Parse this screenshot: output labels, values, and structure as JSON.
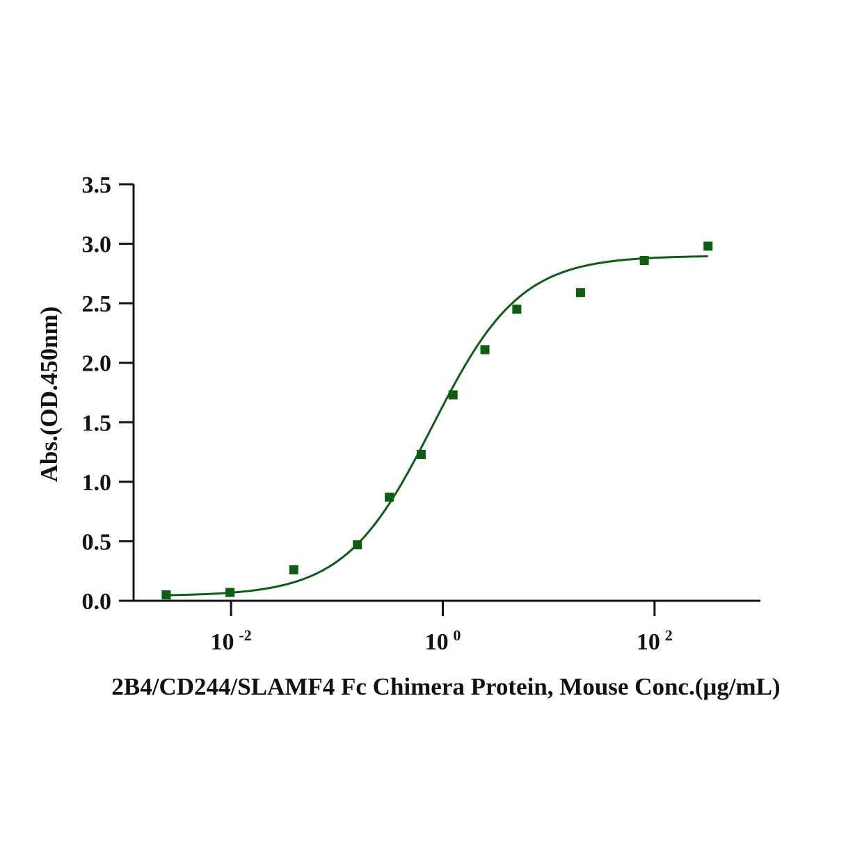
{
  "chart_data": {
    "type": "scatter",
    "title": "",
    "xlabel": "2B4/CD244/SLAMF4 Fc Chimera Protein, Mouse Conc.(μg/mL)",
    "ylabel": "Abs.(OD.450nm)",
    "x_scale": "log10",
    "xlim": [
      0.0012,
      1000
    ],
    "ylim": [
      0,
      3.5
    ],
    "grid": false,
    "legend": "none",
    "color": "#0b5e12",
    "x_ticks": [
      {
        "value": 0.01,
        "base": "10",
        "exp": "-2"
      },
      {
        "value": 1,
        "base": "10",
        "exp": "0"
      },
      {
        "value": 100,
        "base": "10",
        "exp": "2"
      }
    ],
    "y_ticks": [
      {
        "value": 0.0,
        "label": "0.0"
      },
      {
        "value": 0.5,
        "label": "0.5"
      },
      {
        "value": 1.0,
        "label": "1.0"
      },
      {
        "value": 1.5,
        "label": "1.5"
      },
      {
        "value": 2.0,
        "label": "2.0"
      },
      {
        "value": 2.5,
        "label": "2.5"
      },
      {
        "value": 3.0,
        "label": "3.0"
      },
      {
        "value": 3.5,
        "label": "3.5"
      }
    ],
    "series": [
      {
        "points": [
          {
            "x": 0.00244,
            "y": 0.05
          },
          {
            "x": 0.00977,
            "y": 0.07
          },
          {
            "x": 0.0391,
            "y": 0.26
          },
          {
            "x": 0.156,
            "y": 0.47
          },
          {
            "x": 0.3125,
            "y": 0.87
          },
          {
            "x": 0.625,
            "y": 1.23
          },
          {
            "x": 1.25,
            "y": 1.73
          },
          {
            "x": 2.5,
            "y": 2.11
          },
          {
            "x": 5,
            "y": 2.45
          },
          {
            "x": 20,
            "y": 2.59
          },
          {
            "x": 80,
            "y": 2.86
          },
          {
            "x": 320,
            "y": 2.98
          }
        ],
        "fit": {
          "model": "four-parameter logistic",
          "bottom": 0.04,
          "top": 2.9,
          "ec50": 0.8,
          "hill": 1.05,
          "x_range": [
            0.00244,
            320
          ]
        }
      }
    ]
  }
}
